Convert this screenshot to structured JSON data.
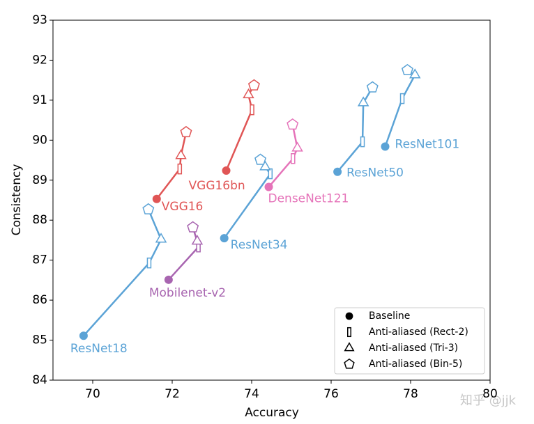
{
  "chart_data": {
    "type": "scatter",
    "xlabel": "Accuracy",
    "ylabel": "Consistency",
    "xlim": [
      69,
      80
    ],
    "ylim": [
      84,
      93
    ],
    "xticks": [
      70,
      72,
      74,
      76,
      78,
      80
    ],
    "yticks": [
      84,
      85,
      86,
      87,
      88,
      89,
      90,
      91,
      92,
      93
    ],
    "legend": [
      "Baseline",
      "Anti-aliased (Rect-2)",
      "Anti-aliased (Tri-3)",
      "Anti-aliased (Bin-5)"
    ],
    "legend_position": "lower right",
    "series": [
      {
        "name": "ResNet18",
        "color": "#5ba3d6",
        "x": [
          69.77,
          71.42,
          71.72,
          71.4
        ],
        "y": [
          85.11,
          86.93,
          87.52,
          88.27
        ]
      },
      {
        "name": "VGG16",
        "color": "#e05555",
        "x": [
          71.61,
          72.19,
          72.22,
          72.35
        ],
        "y": [
          88.53,
          89.28,
          89.61,
          90.2
        ]
      },
      {
        "name": "VGG16bn",
        "color": "#e05555",
        "x": [
          73.36,
          74.01,
          73.92,
          74.06
        ],
        "y": [
          89.24,
          90.76,
          91.13,
          91.37
        ]
      },
      {
        "name": "Mobilenet-v2",
        "color": "#a865b0",
        "x": [
          71.91,
          72.66,
          72.63,
          72.52
        ],
        "y": [
          86.51,
          87.33,
          87.47,
          87.82
        ]
      },
      {
        "name": "ResNet34",
        "color": "#5ba3d6",
        "x": [
          73.31,
          74.47,
          74.34,
          74.22
        ],
        "y": [
          87.55,
          89.16,
          89.33,
          89.51
        ]
      },
      {
        "name": "DenseNet121",
        "color": "#e573b9",
        "x": [
          74.43,
          75.04,
          75.15,
          75.03
        ],
        "y": [
          88.83,
          89.54,
          89.8,
          90.39
        ]
      },
      {
        "name": "ResNet50",
        "color": "#5ba3d6",
        "x": [
          76.16,
          76.79,
          76.81,
          77.04
        ],
        "y": [
          89.21,
          89.96,
          90.93,
          91.32
        ]
      },
      {
        "name": "ResNet101",
        "color": "#5ba3d6",
        "x": [
          77.36,
          77.79,
          78.11,
          77.92
        ],
        "y": [
          89.84,
          91.04,
          91.63,
          91.75
        ]
      }
    ]
  },
  "watermark": "知乎 @jjk"
}
